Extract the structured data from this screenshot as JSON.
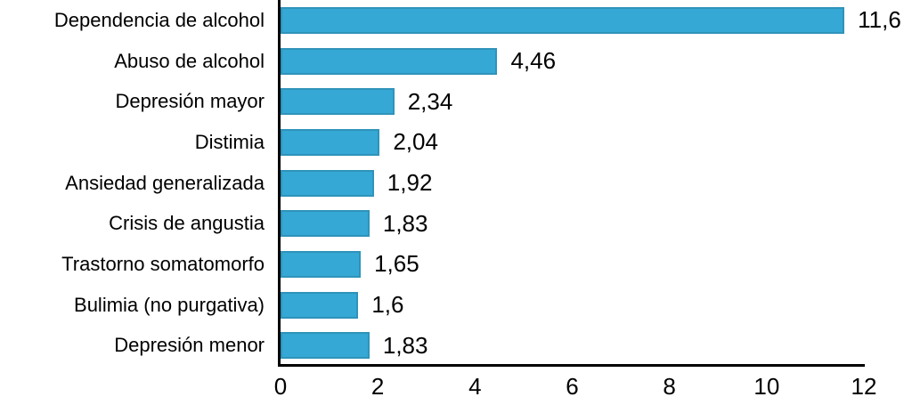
{
  "chart_data": {
    "type": "bar",
    "orientation": "horizontal",
    "title": "",
    "xlabel": "",
    "ylabel": "",
    "xlim": [
      0,
      12
    ],
    "x_ticks": [
      "0",
      "2",
      "4",
      "6",
      "8",
      "10",
      "12"
    ],
    "grid": false,
    "legend": null,
    "categories": [
      "Dependencia de alcohol",
      "Abuso de alcohol",
      "Depresión mayor",
      "Distimia",
      "Ansiedad generalizada",
      "Crisis de angustia",
      "Trastorno somatomorfo",
      "Bulimia (no purgativa)",
      "Depresión menor"
    ],
    "values": [
      11.6,
      4.46,
      2.34,
      2.04,
      1.92,
      1.83,
      1.65,
      1.6,
      1.83
    ],
    "value_labels": [
      "11,6",
      "4,46",
      "2,34",
      "2,04",
      "1,92",
      "1,83",
      "1,65",
      "1,6",
      "1,83"
    ],
    "colors": {
      "bar_fill": "#35a8d5",
      "bar_border": "#2f93ba",
      "axis": "#000000",
      "text": "#000000",
      "background": "#ffffff"
    }
  }
}
